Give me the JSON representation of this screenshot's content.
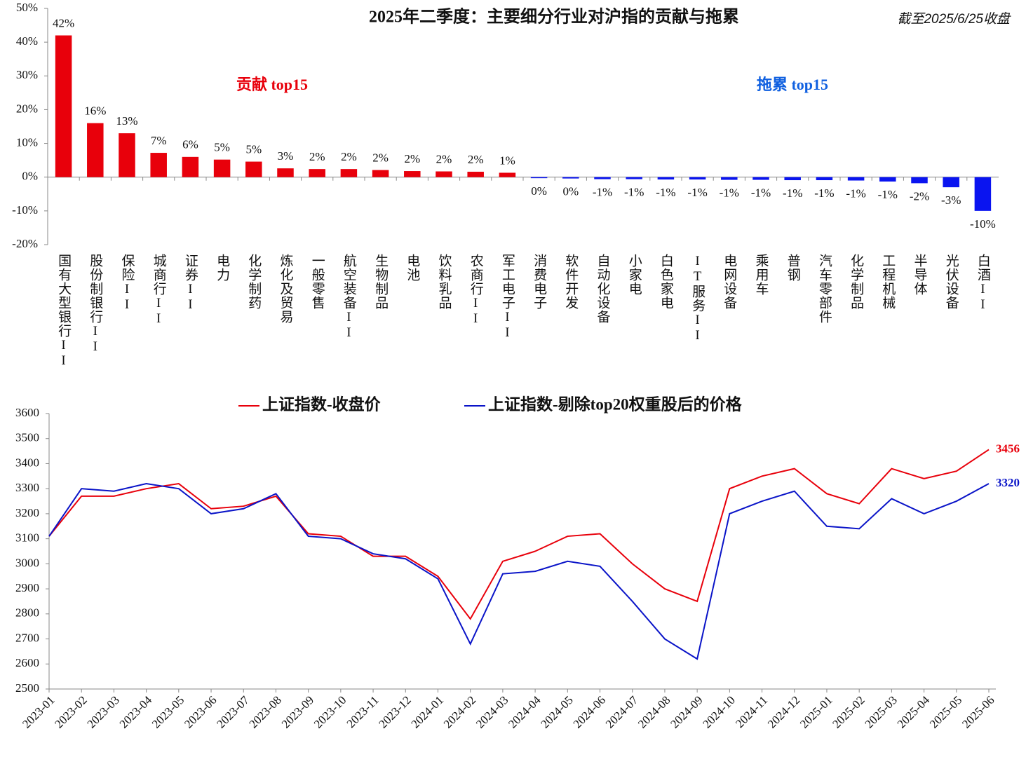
{
  "chart_data": [
    {
      "type": "bar",
      "title": "2025年二季度：主要细分行业对沪指的贡献与拖累",
      "subtitle": "截至2025/6/25收盘",
      "annotations": [
        "贡献 top15",
        "拖累 top15"
      ],
      "categories": [
        "国有大型银行II",
        "股份制银行II",
        "保险II",
        "城商行II",
        "证券II",
        "电力",
        "化学制药",
        "炼化及贸易",
        "一般零售",
        "航空装备II",
        "生物制品",
        "电池",
        "饮料乳品",
        "农商行II",
        "军工电子II",
        "消费电子",
        "软件开发",
        "自动化设备",
        "小家电",
        "白色家电",
        "IT服务II",
        "电网设备",
        "乘用车",
        "普钢",
        "汽车零部件",
        "化学制品",
        "工程机械",
        "半导体",
        "光伏设备",
        "白酒II"
      ],
      "values": [
        42,
        16,
        13,
        7.2,
        6,
        5.2,
        4.6,
        2.6,
        2.4,
        2.4,
        2.1,
        1.8,
        1.7,
        1.6,
        1.3,
        -0.3,
        -0.4,
        -0.6,
        -0.6,
        -0.7,
        -0.7,
        -0.8,
        -0.8,
        -0.9,
        -0.9,
        -1.0,
        -1.3,
        -1.8,
        -3.0,
        -10
      ],
      "value_labels": [
        "42%",
        "16%",
        "13%",
        "7%",
        "6%",
        "5%",
        "5%",
        "3%",
        "2%",
        "2%",
        "2%",
        "2%",
        "2%",
        "2%",
        "1%",
        "0%",
        "0%",
        "-1%",
        "-1%",
        "-1%",
        "-1%",
        "-1%",
        "-1%",
        "-1%",
        "-1%",
        "-1%",
        "-1%",
        "-2%",
        "-3%",
        "-10%"
      ],
      "positive_color": "#e8000b",
      "negative_color": "#0a14f0",
      "ylim": [
        -20,
        50
      ],
      "yticks": [
        {
          "value": -20,
          "label": "-20%"
        },
        {
          "value": -10,
          "label": "-10%"
        },
        {
          "value": 0,
          "label": "0%"
        },
        {
          "value": 10,
          "label": "10%"
        },
        {
          "value": 20,
          "label": "20%"
        },
        {
          "value": 30,
          "label": "30%"
        },
        {
          "value": 40,
          "label": "40%"
        },
        {
          "value": 50,
          "label": "50%"
        }
      ]
    },
    {
      "type": "line",
      "x": [
        "2023-01",
        "2023-02",
        "2023-03",
        "2023-04",
        "2023-05",
        "2023-06",
        "2023-07",
        "2023-08",
        "2023-09",
        "2023-10",
        "2023-11",
        "2023-12",
        "2024-01",
        "2024-02",
        "2024-03",
        "2024-04",
        "2024-05",
        "2024-06",
        "2024-07",
        "2024-08",
        "2024-09",
        "2024-10",
        "2024-11",
        "2024-12",
        "2025-01",
        "2025-02",
        "2025-03",
        "2025-04",
        "2025-05",
        "2025-06"
      ],
      "series": [
        {
          "name": "上证指数-收盘价",
          "color": "#e8000b",
          "values": [
            3110,
            3270,
            3270,
            3300,
            3320,
            3220,
            3230,
            3270,
            3120,
            3110,
            3030,
            3030,
            2950,
            2780,
            3010,
            3050,
            3110,
            3120,
            3000,
            2900,
            2850,
            3300,
            3350,
            3380,
            3280,
            3240,
            3380,
            3340,
            3370,
            3456
          ]
        },
        {
          "name": "上证指数-剔除top20权重股后的价格",
          "color": "#0a14c8",
          "values": [
            3110,
            3300,
            3290,
            3320,
            3300,
            3200,
            3220,
            3280,
            3110,
            3100,
            3040,
            3020,
            2940,
            2680,
            2960,
            2970,
            3010,
            2990,
            2850,
            2700,
            2620,
            3200,
            3250,
            3290,
            3150,
            3140,
            3260,
            3200,
            3250,
            3320
          ]
        }
      ],
      "ylim": [
        2500,
        3600
      ],
      "yticks": [
        2500,
        2600,
        2700,
        2800,
        2900,
        3000,
        3100,
        3200,
        3300,
        3400,
        3500,
        3600
      ]
    }
  ]
}
